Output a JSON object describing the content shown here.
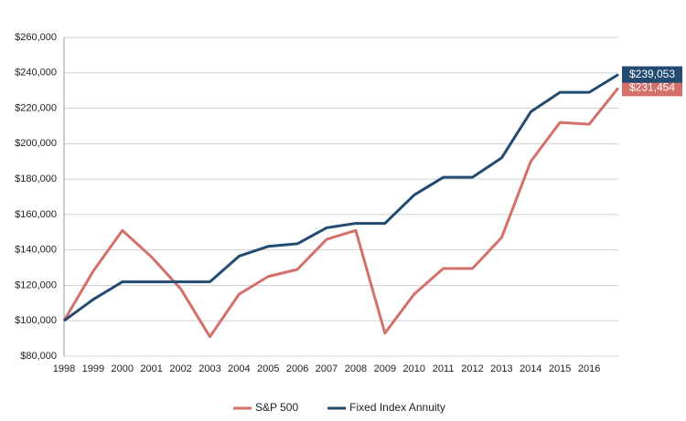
{
  "chart_data": {
    "type": "line",
    "categories": [
      "1998",
      "1999",
      "2000",
      "2001",
      "2002",
      "2003",
      "2004",
      "2005",
      "2006",
      "2007",
      "2008",
      "2009",
      "2010",
      "2011",
      "2012",
      "2013",
      "2014",
      "2015",
      "2016",
      null
    ],
    "series": [
      {
        "name": "S&P 500",
        "color": "#d4706a",
        "values": [
          100000,
          128000,
          151000,
          136000,
          118000,
          91000,
          115000,
          125000,
          129000,
          146000,
          151000,
          93000,
          115000,
          129500,
          129500,
          147000,
          190000,
          212000,
          211000,
          231454
        ],
        "value_labels": [
          null,
          null,
          null,
          null,
          null,
          null,
          null,
          null,
          null,
          null,
          null,
          null,
          null,
          null,
          null,
          null,
          null,
          null,
          null,
          "$231,454"
        ]
      },
      {
        "name": "Fixed Index Annuity",
        "color": "#234a70",
        "values": [
          100000,
          112000,
          122000,
          122000,
          122000,
          122000,
          136500,
          142000,
          143500,
          152500,
          155000,
          155000,
          171000,
          181000,
          181000,
          192000,
          218000,
          229000,
          229000,
          239053
        ],
        "value_labels": [
          null,
          null,
          null,
          null,
          null,
          null,
          null,
          null,
          null,
          null,
          null,
          null,
          null,
          null,
          null,
          null,
          null,
          null,
          null,
          "$239,053"
        ]
      }
    ],
    "ylim": [
      80000,
      260000
    ],
    "yticks": [
      {
        "value": 80000,
        "label": "$80,000"
      },
      {
        "value": 100000,
        "label": "$100,000"
      },
      {
        "value": 120000,
        "label": "$120,000"
      },
      {
        "value": 140000,
        "label": "$140,000"
      },
      {
        "value": 160000,
        "label": "$160,000"
      },
      {
        "value": 180000,
        "label": "$180,000"
      },
      {
        "value": 200000,
        "label": "$200,000"
      },
      {
        "value": 220000,
        "label": "$220,000"
      },
      {
        "value": 240000,
        "label": "$240,000"
      },
      {
        "value": 260000,
        "label": "$260,000"
      }
    ],
    "grid": true,
    "legend": "bottom"
  }
}
